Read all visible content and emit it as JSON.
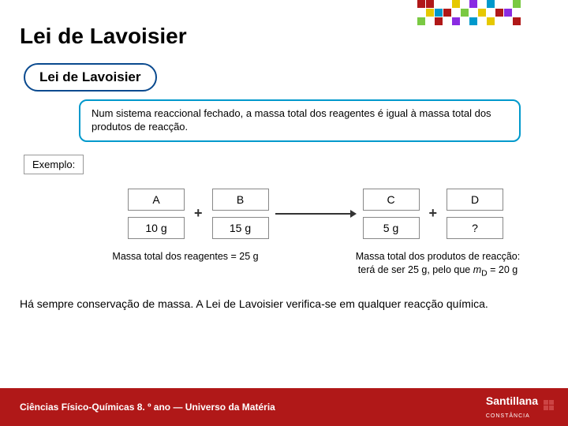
{
  "title": "Lei de Lavoisier",
  "subtitle": "Lei de Lavoisier",
  "definition": "Num sistema reaccional fechado, a massa total dos reagentes é igual à massa total dos produtos de reacção.",
  "exemplo_label": "Exemplo:",
  "reaction": {
    "A": {
      "letter": "A",
      "mass": "10 g"
    },
    "B": {
      "letter": "B",
      "mass": "15 g"
    },
    "C": {
      "letter": "C",
      "mass": "5 g"
    },
    "D": {
      "letter": "D",
      "mass": "?"
    },
    "plus": "+"
  },
  "mass_left": "Massa total dos reagentes = 25 g",
  "mass_right_a": "Massa total dos produtos de reacção: terá de ser 25 g, pelo que ",
  "mass_right_b": "m",
  "mass_right_c": "D",
  "mass_right_d": " = 20 g",
  "conclusion": "Há sempre conservação de massa. A Lei de Lavoisier verifica-se em qualquer reacção química.",
  "footer": "Ciências Físico-Químicas 8. º ano — Universo da Matéria",
  "brand": "Santillana",
  "brand_sub": "CONSTÂNCIA",
  "mosaic_colors": [
    "#b01818",
    "#b01818",
    "",
    "",
    "#e6c800",
    "",
    "#8a2be2",
    "",
    "#0099cc",
    "",
    "",
    "#7ac943",
    "",
    "#e6c800",
    "#0099cc",
    "#b01818",
    "",
    "#7ac943",
    "",
    "#e6c800",
    "",
    "#b01818",
    "#8a2be2",
    "",
    "#7ac943",
    "",
    "#b01818",
    "",
    "#8a2be2",
    "",
    "#0099cc",
    "",
    "#e6c800",
    "",
    "",
    "#b01818"
  ],
  "colors": {
    "pill_border": "#0a4a8f",
    "defbox_border": "#0099cc",
    "footer_bg": "#b01818",
    "cell_border": "#888888"
  }
}
